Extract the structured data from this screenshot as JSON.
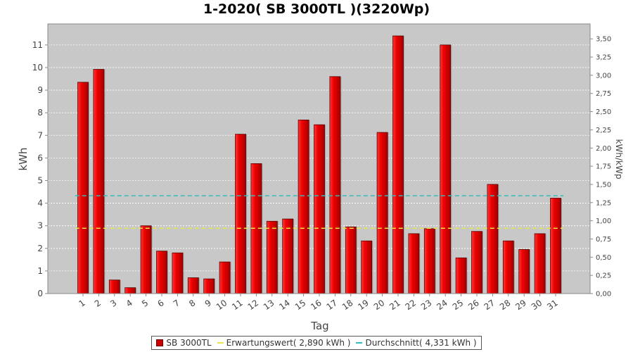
{
  "chart_data": {
    "type": "bar",
    "title": "1-2020( SB 3000TL )(3220Wp)",
    "xlabel": "Tag",
    "ylabel": "kWh",
    "y2label": "kWh/kWp",
    "ylim": [
      0,
      11.93
    ],
    "y2lim": [
      0,
      3.705
    ],
    "yticks": [
      "0",
      "1",
      "2",
      "3",
      "4",
      "5",
      "6",
      "7",
      "8",
      "9",
      "10",
      "11"
    ],
    "y2ticks": [
      "0,00",
      "0,25",
      "0,50",
      "0,75",
      "1,00",
      "1,25",
      "1,50",
      "1,75",
      "2,00",
      "2,25",
      "2,50",
      "2,75",
      "3,00",
      "3,25",
      "3,50"
    ],
    "categories": [
      "1",
      "2",
      "3",
      "4",
      "5",
      "6",
      "7",
      "8",
      "9",
      "10",
      "11",
      "12",
      "13",
      "14",
      "15",
      "16",
      "17",
      "18",
      "19",
      "20",
      "21",
      "22",
      "23",
      "24",
      "25",
      "26",
      "27",
      "28",
      "29",
      "30",
      "31"
    ],
    "series": [
      {
        "name": "SB 3000TL",
        "color": "#cc0000",
        "values": [
          9.35,
          9.92,
          0.6,
          0.26,
          3.0,
          1.88,
          1.8,
          0.7,
          0.65,
          1.4,
          7.05,
          5.75,
          3.2,
          3.3,
          7.68,
          7.47,
          9.6,
          2.95,
          2.33,
          7.13,
          11.4,
          2.65,
          2.87,
          11.0,
          1.58,
          2.75,
          4.83,
          2.33,
          1.95,
          2.65,
          4.22
        ]
      }
    ],
    "reference_lines": [
      {
        "name": "Erwartungswert( 2,890 kWh )",
        "value": 2.89,
        "color": "#e6e64c",
        "style": "dashed"
      },
      {
        "name": "Durchschnitt( 4,331 kWh )",
        "value": 4.331,
        "color": "#33bbbb",
        "style": "dashed"
      }
    ],
    "grid": true,
    "legend_position": "bottom"
  }
}
